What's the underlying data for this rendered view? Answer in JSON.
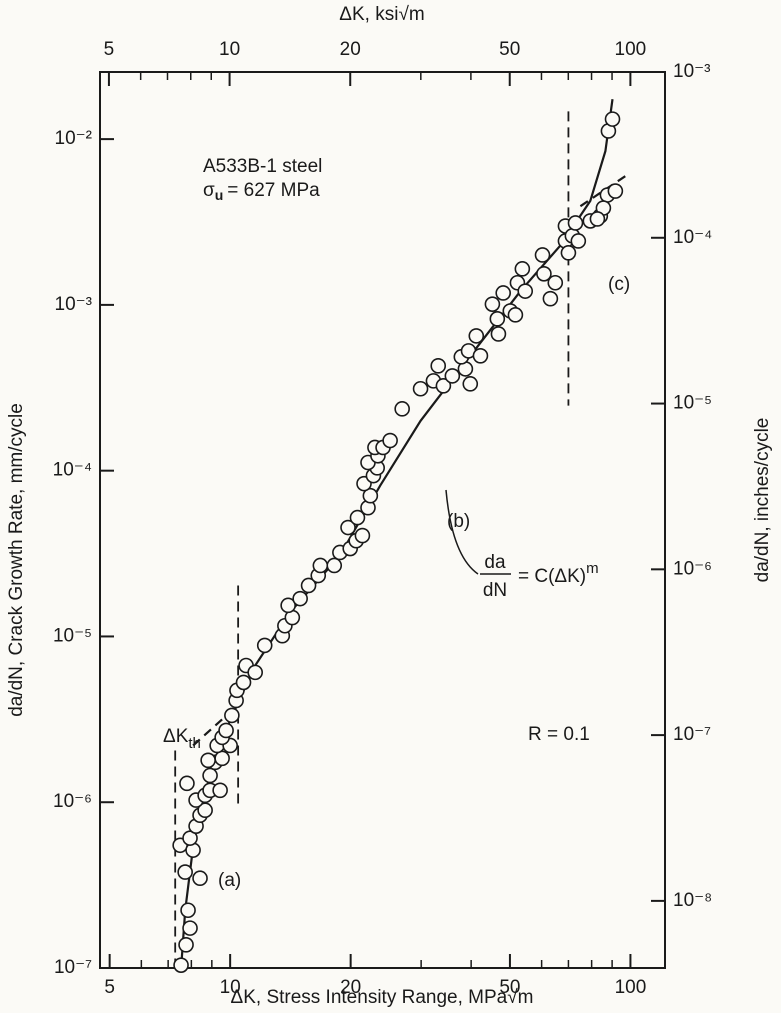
{
  "chart_data": {
    "type": "scatter",
    "log_x": true,
    "log_y": true,
    "x_label": "ΔK, Stress Intensity Range, MPa√m",
    "x2_label": "ΔK, ksi√m",
    "y_label": "da/dN, Crack Growth Rate, mm/cycle",
    "y2_label": "da/dN, inches/cycle",
    "xlim": [
      4.73,
      122
    ],
    "xticks": [
      5,
      10,
      20,
      50,
      100
    ],
    "xminorticks": [
      6,
      7,
      8,
      9,
      30,
      40,
      60,
      70,
      80,
      90
    ],
    "x2lim": [
      4.75,
      122
    ],
    "x2ticks": [
      5,
      10,
      20,
      50,
      100
    ],
    "x2minorticks": [
      6,
      7,
      8,
      9,
      30,
      40,
      60,
      70,
      80,
      90
    ],
    "ylim": [
      1e-07,
      0.0254
    ],
    "yticks": [
      {
        "value": 1e-07,
        "label": "10⁻⁷"
      },
      {
        "value": 1e-06,
        "label": "10⁻⁶"
      },
      {
        "value": 1e-05,
        "label": "10⁻⁵"
      },
      {
        "value": 0.0001,
        "label": "10⁻⁴"
      },
      {
        "value": 0.001,
        "label": "10⁻³"
      },
      {
        "value": 0.01,
        "label": "10⁻²"
      }
    ],
    "y2lim": [
      3.937e-09,
      0.001
    ],
    "y2ticks": [
      {
        "value": 1e-08,
        "label": "10⁻⁸"
      },
      {
        "value": 1e-07,
        "label": "10⁻⁷"
      },
      {
        "value": 1e-06,
        "label": "10⁻⁶"
      },
      {
        "value": 1e-05,
        "label": "10⁻⁵"
      },
      {
        "value": 0.0001,
        "label": "10⁻⁴"
      },
      {
        "value": 0.001,
        "label": "10⁻³"
      }
    ],
    "marker_color": "#1a1a1a",
    "points": {
      "x": [
        7.54,
        7.76,
        7.94,
        7.85,
        8.41,
        7.72,
        7.5,
        8.08,
        7.94,
        8.22,
        8.41,
        8.66,
        8.22,
        8.66,
        8.91,
        9.44,
        7.8,
        8.91,
        9.17,
        8.81,
        9.55,
        9.28,
        10.0,
        9.55,
        9.77,
        10.1,
        10.35,
        10.4,
        10.8,
        10.96,
        11.55,
        12.2,
        13.5,
        13.7,
        14.3,
        13.96,
        14.96,
        15.7,
        16.6,
        16.8,
        18.2,
        18.8,
        19.95,
        20.65,
        21.4,
        19.7,
        20.8,
        22.1,
        22.4,
        21.6,
        22.8,
        23.3,
        22.1,
        23.4,
        23.0,
        24.1,
        25.1,
        26.9,
        29.9,
        32.2,
        34.1,
        35.9,
        33.1,
        38.7,
        37.8,
        39.4,
        41.2,
        42.2,
        39.8,
        46.5,
        45.2,
        46.8,
        50.1,
        48.1,
        51.6,
        52.2,
        54.6,
        53.7,
        60.8,
        60.3,
        63.1,
        64.9,
        68.8,
        68.8,
        71.6,
        74.1,
        72.9,
        70.0,
        84.1,
        87.6,
        85.6,
        79.4,
        82.7,
        91.7,
        88.1,
        90.2
      ],
      "y": [
        1.04e-07,
        1.38e-07,
        1.74e-07,
        2.23e-07,
        3.48e-07,
        3.79e-07,
        5.5e-07,
        5.14e-07,
        6.07e-07,
        7.17e-07,
        8.35e-07,
        8.95e-07,
        1.03e-06,
        1.1e-06,
        1.18e-06,
        1.18e-06,
        1.3e-06,
        1.45e-06,
        1.74e-06,
        1.79e-06,
        1.84e-06,
        2.2e-06,
        2.2e-06,
        2.46e-06,
        2.71e-06,
        3.34e-06,
        4.11e-06,
        4.73e-06,
        5.28e-06,
        6.68e-06,
        6.07e-06,
        8.83e-06,
        1.01e-05,
        1.16e-05,
        1.3e-05,
        1.54e-05,
        1.69e-05,
        2.03e-05,
        2.33e-05,
        2.68e-05,
        2.68e-05,
        3.21e-05,
        3.39e-05,
        3.78e-05,
        4.06e-05,
        4.54e-05,
        5.21e-05,
        5.98e-05,
        7.06e-05,
        8.35e-05,
        9.33e-05,
        0.000104,
        0.000112,
        0.000123,
        0.000138,
        0.000138,
        0.000152,
        0.000236,
        0.000312,
        0.000348,
        0.000325,
        0.000373,
        0.000429,
        0.000411,
        0.000486,
        0.000528,
        0.00065,
        0.000493,
        0.000334,
        0.000824,
        0.00101,
        0.000668,
        0.00092,
        0.00118,
        0.000871,
        0.00136,
        0.00121,
        0.00165,
        0.00154,
        0.002,
        0.00109,
        0.00136,
        0.00243,
        0.00299,
        0.00261,
        0.00243,
        0.00312,
        0.00206,
        0.00344,
        0.0046,
        0.00384,
        0.00321,
        0.0033,
        0.00486,
        0.0112,
        0.0132
      ]
    },
    "curve": {
      "x": [
        7.54,
        7.72,
        8.18,
        8.91,
        10.0,
        11.55,
        14.13,
        18.8,
        23.7,
        29.9,
        39.8,
        53.1,
        66.8,
        79.4,
        86.6,
        90.2
      ],
      "y": [
        1e-07,
        2.23e-07,
        6.78e-07,
        1.45e-06,
        3.12e-06,
        6.68e-06,
        1.4e-05,
        3.08e-05,
        8.13e-05,
        0.0002,
        0.000493,
        0.00121,
        0.00228,
        0.00424,
        0.00847,
        0.0174
      ]
    },
    "curve_extensions": [
      {
        "x": [
          8.08,
          10.0
        ],
        "y": [
          2.2e-06,
          3.49e-06
        ]
      },
      {
        "x": [
          75.0,
          97.2
        ],
        "y": [
          0.00394,
          0.00599
        ]
      }
    ],
    "region_lines": [
      {
        "x": 7.29,
        "y": [
          2.05e-06,
          1.04e-07
        ]
      },
      {
        "x": 10.47,
        "y": [
          2.03e-05,
          9.6e-07
        ]
      },
      {
        "x": 70.0,
        "y": [
          0.0147,
          0.000247
        ]
      }
    ],
    "material": "A533B-1 steel",
    "strength": {
      "symbol": "σ",
      "subscript": "u",
      "text": "= 627 MPa"
    },
    "threshold": {
      "text": "ΔK",
      "subscript": "th"
    },
    "regions": [
      "(a)",
      "(b)",
      "(c)"
    ],
    "ratio": "R = 0.1",
    "formula": {
      "numerator": "da",
      "denominator": "dN",
      "rhs": "= C(ΔK)",
      "exponent": "m"
    }
  }
}
